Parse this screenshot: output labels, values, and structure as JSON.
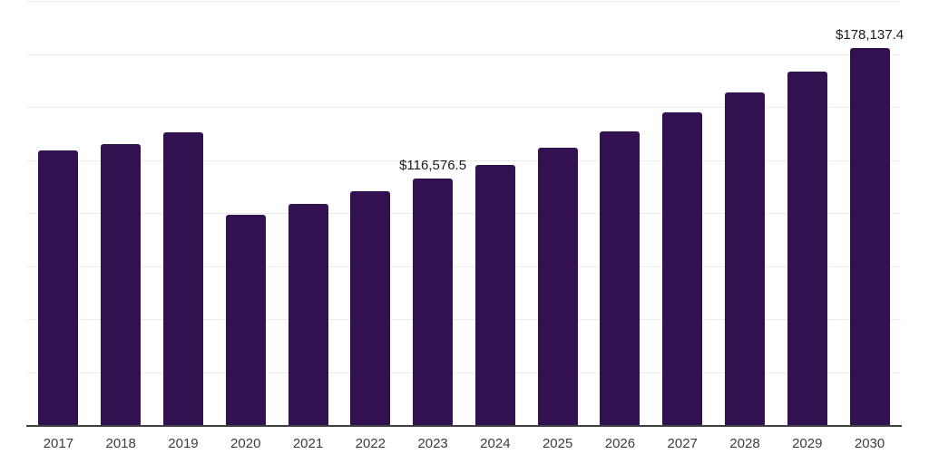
{
  "chart_data": {
    "type": "bar",
    "title": "",
    "xlabel": "",
    "ylabel": "",
    "categories": [
      "2017",
      "2018",
      "2019",
      "2020",
      "2021",
      "2022",
      "2023",
      "2024",
      "2025",
      "2026",
      "2027",
      "2028",
      "2029",
      "2030"
    ],
    "values": [
      130100,
      133100,
      138500,
      99500,
      104800,
      110600,
      116576.5,
      123300,
      131300,
      138700,
      147900,
      157200,
      167100,
      178137.4
    ],
    "ylim": [
      0,
      200000
    ],
    "gridline_interval": 25000,
    "grid": "horizontal",
    "legend": "none",
    "bar_color": "#321150",
    "background_color": "#ffffff",
    "annotations": [
      {
        "category": "2023",
        "text": "$116,576.5"
      },
      {
        "category": "2030",
        "text": "$178,137.4"
      }
    ]
  }
}
